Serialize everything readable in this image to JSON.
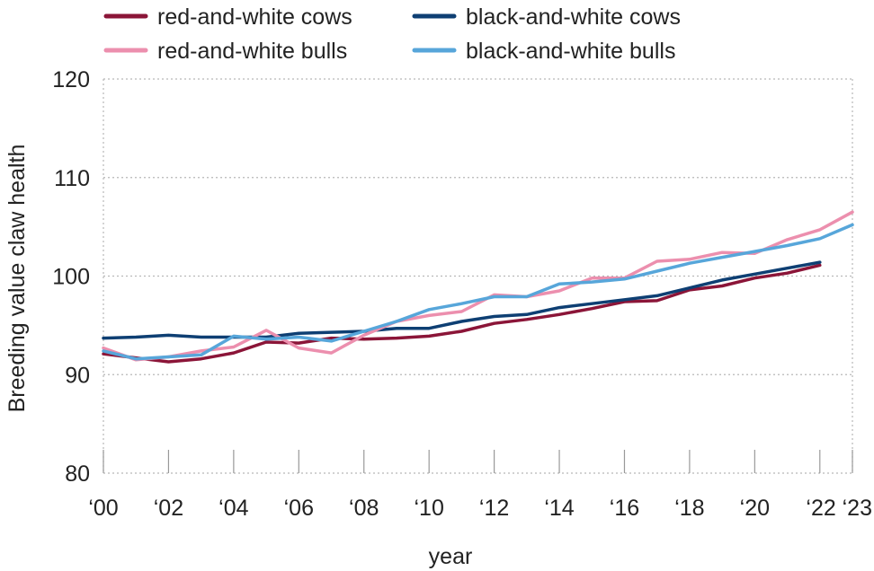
{
  "chart_data": {
    "type": "line",
    "title": "",
    "xlabel": "year",
    "ylabel": "Breeding value claw health",
    "ylim": [
      80,
      120
    ],
    "yticks": [
      80,
      90,
      100,
      110,
      120
    ],
    "xlim": [
      2000,
      2023
    ],
    "xticks": [
      {
        "value": 2000,
        "label": "‘00"
      },
      {
        "value": 2002,
        "label": "‘02"
      },
      {
        "value": 2004,
        "label": "‘04"
      },
      {
        "value": 2006,
        "label": "‘06"
      },
      {
        "value": 2008,
        "label": "‘08"
      },
      {
        "value": 2010,
        "label": "‘10"
      },
      {
        "value": 2012,
        "label": "‘12"
      },
      {
        "value": 2014,
        "label": "‘14"
      },
      {
        "value": 2016,
        "label": "‘16"
      },
      {
        "value": 2018,
        "label": "‘18"
      },
      {
        "value": 2020,
        "label": "‘20"
      },
      {
        "value": 2022,
        "label": "‘22"
      },
      {
        "value": 2023,
        "label": "‘23"
      }
    ],
    "grid": true,
    "legend_position": "top",
    "series": [
      {
        "name": "red-and-white cows",
        "color": "#8b1538",
        "x": [
          2000,
          2001,
          2002,
          2003,
          2004,
          2005,
          2006,
          2007,
          2008,
          2009,
          2010,
          2011,
          2012,
          2013,
          2014,
          2015,
          2016,
          2017,
          2018,
          2019,
          2020,
          2021,
          2022
        ],
        "values": [
          92.1,
          91.7,
          91.3,
          91.6,
          92.2,
          93.3,
          93.2,
          93.7,
          93.6,
          93.7,
          93.9,
          94.4,
          95.2,
          95.6,
          96.1,
          96.7,
          97.4,
          97.5,
          98.6,
          99.0,
          99.8,
          100.3,
          101.1
        ]
      },
      {
        "name": "black-and-white cows",
        "color": "#0e3f73",
        "x": [
          2000,
          2001,
          2002,
          2003,
          2004,
          2005,
          2006,
          2007,
          2008,
          2009,
          2010,
          2011,
          2012,
          2013,
          2014,
          2015,
          2016,
          2017,
          2018,
          2019,
          2020,
          2021,
          2022
        ],
        "values": [
          93.7,
          93.8,
          94.0,
          93.8,
          93.8,
          93.8,
          94.2,
          94.3,
          94.4,
          94.7,
          94.7,
          95.4,
          95.9,
          96.1,
          96.8,
          97.2,
          97.6,
          98.0,
          98.8,
          99.6,
          100.2,
          100.8,
          101.4
        ]
      },
      {
        "name": "red-and-white bulls",
        "color": "#ec8fae",
        "x": [
          2000,
          2001,
          2002,
          2003,
          2004,
          2005,
          2006,
          2007,
          2008,
          2009,
          2010,
          2011,
          2012,
          2013,
          2014,
          2015,
          2016,
          2017,
          2018,
          2019,
          2020,
          2021,
          2022,
          2023
        ],
        "values": [
          92.7,
          91.5,
          91.8,
          92.4,
          92.8,
          94.5,
          92.7,
          92.2,
          94.0,
          95.4,
          96.0,
          96.4,
          98.1,
          97.9,
          98.5,
          99.8,
          99.8,
          101.5,
          101.7,
          102.4,
          102.3,
          103.7,
          104.7,
          106.5
        ]
      },
      {
        "name": "black-and-white bulls",
        "color": "#57a6da",
        "x": [
          2000,
          2001,
          2002,
          2003,
          2004,
          2005,
          2006,
          2007,
          2008,
          2009,
          2010,
          2011,
          2012,
          2013,
          2014,
          2015,
          2016,
          2017,
          2018,
          2019,
          2020,
          2021,
          2022,
          2023
        ],
        "values": [
          92.4,
          91.6,
          91.8,
          92.0,
          93.9,
          93.6,
          93.8,
          93.4,
          94.4,
          95.4,
          96.6,
          97.2,
          97.9,
          97.9,
          99.2,
          99.4,
          99.7,
          100.5,
          101.3,
          101.9,
          102.5,
          103.1,
          103.8,
          105.2
        ]
      }
    ]
  }
}
